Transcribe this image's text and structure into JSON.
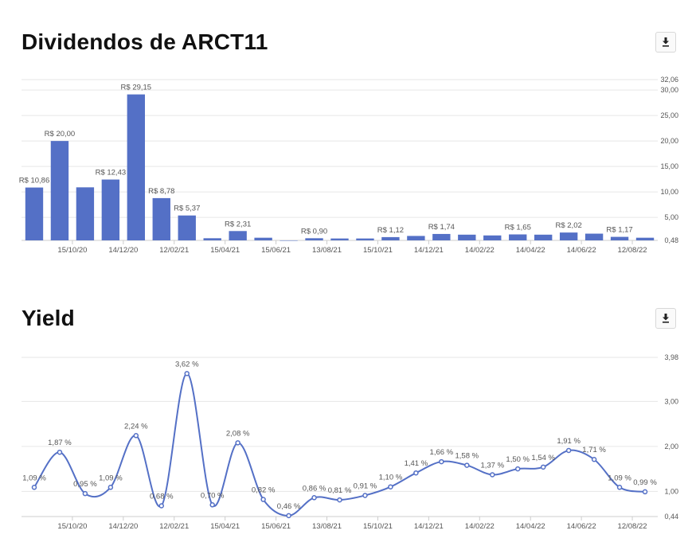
{
  "colors": {
    "bar": "#5470c6",
    "line": "#5470c6",
    "grid": "#e6e6e6",
    "axis": "#cccccc",
    "label": "#555555",
    "title": "#111111"
  },
  "icons": {
    "download": "download-icon"
  },
  "chart_data": [
    {
      "type": "bar",
      "title": "Dividendos de ARCT11",
      "xlabel": "",
      "ylabel": "",
      "ylim": [
        0.48,
        32.06
      ],
      "y_axis_position": "right",
      "y_ticks": [
        "32,06",
        "30,00",
        "25,00",
        "20,00",
        "15,00",
        "10,00",
        "5,00",
        "0,48"
      ],
      "y_tick_values": [
        32.06,
        30,
        25,
        20,
        15,
        10,
        5,
        0.48
      ],
      "x_ticks": [
        {
          "index": 2,
          "label": "15/10/20"
        },
        {
          "index": 4,
          "label": "14/12/20"
        },
        {
          "index": 6,
          "label": "12/02/21"
        },
        {
          "index": 8,
          "label": "15/04/21"
        },
        {
          "index": 10,
          "label": "15/06/21"
        },
        {
          "index": 12,
          "label": "13/08/21"
        },
        {
          "index": 14,
          "label": "15/10/21"
        },
        {
          "index": 16,
          "label": "14/12/21"
        },
        {
          "index": 18,
          "label": "14/02/22"
        },
        {
          "index": 20,
          "label": "14/04/22"
        },
        {
          "index": 22,
          "label": "14/06/22"
        },
        {
          "index": 24,
          "label": "12/08/22"
        }
      ],
      "values": [
        10.86,
        20.0,
        10.9,
        12.43,
        29.15,
        8.78,
        5.37,
        0.9,
        2.31,
        1.0,
        0.48,
        0.9,
        0.85,
        0.85,
        1.12,
        1.35,
        1.74,
        1.6,
        1.45,
        1.65,
        1.6,
        2.02,
        1.8,
        1.17,
        1.0
      ],
      "data_labels": [
        {
          "index": 0,
          "text": "R$ 10,86"
        },
        {
          "index": 1,
          "text": "R$ 20,00"
        },
        {
          "index": 3,
          "text": "R$ 12,43"
        },
        {
          "index": 4,
          "text": "R$ 29,15"
        },
        {
          "index": 5,
          "text": "R$ 8,78"
        },
        {
          "index": 6,
          "text": "R$ 5,37"
        },
        {
          "index": 8,
          "text": "R$ 2,31"
        },
        {
          "index": 11,
          "text": "R$ 0,90"
        },
        {
          "index": 14,
          "text": "R$ 1,12"
        },
        {
          "index": 16,
          "text": "R$ 1,74"
        },
        {
          "index": 19,
          "text": "R$ 1,65"
        },
        {
          "index": 21,
          "text": "R$ 2,02"
        },
        {
          "index": 23,
          "text": "R$ 1,17"
        }
      ]
    },
    {
      "type": "line",
      "title": "Yield",
      "xlabel": "",
      "ylabel": "",
      "ylim": [
        0.44,
        3.98
      ],
      "y_axis_position": "right",
      "y_ticks": [
        "3,98",
        "3,00",
        "2,00",
        "1,00",
        "0,44"
      ],
      "y_tick_values": [
        3.98,
        3.0,
        2.0,
        1.0,
        0.44
      ],
      "smooth": true,
      "x_ticks": [
        {
          "index": 2,
          "label": "15/10/20"
        },
        {
          "index": 4,
          "label": "14/12/20"
        },
        {
          "index": 6,
          "label": "12/02/21"
        },
        {
          "index": 8,
          "label": "15/04/21"
        },
        {
          "index": 10,
          "label": "15/06/21"
        },
        {
          "index": 12,
          "label": "13/08/21"
        },
        {
          "index": 14,
          "label": "15/10/21"
        },
        {
          "index": 16,
          "label": "14/12/21"
        },
        {
          "index": 18,
          "label": "14/02/22"
        },
        {
          "index": 20,
          "label": "14/04/22"
        },
        {
          "index": 22,
          "label": "14/06/22"
        },
        {
          "index": 24,
          "label": "12/08/22"
        }
      ],
      "values": [
        1.09,
        1.87,
        0.95,
        1.09,
        2.24,
        0.68,
        3.62,
        0.7,
        2.08,
        0.82,
        0.46,
        0.86,
        0.81,
        0.91,
        1.1,
        1.41,
        1.66,
        1.58,
        1.37,
        1.5,
        1.54,
        1.91,
        1.71,
        1.09,
        0.99
      ],
      "data_labels": [
        "1,09 %",
        "1,87 %",
        "0,95 %",
        "1,09 %",
        "2,24 %",
        "0,68 %",
        "3,62 %",
        "0,70 %",
        "2,08 %",
        "0,82 %",
        "0,46 %",
        "0,86 %",
        "0,81 %",
        "0,91 %",
        "1,10 %",
        "1,41 %",
        "1,66 %",
        "1,58 %",
        "1,37 %",
        "1,50 %",
        "1,54 %",
        "1,91 %",
        "1,71 %",
        "1,09 %",
        "0,99 %"
      ]
    }
  ]
}
